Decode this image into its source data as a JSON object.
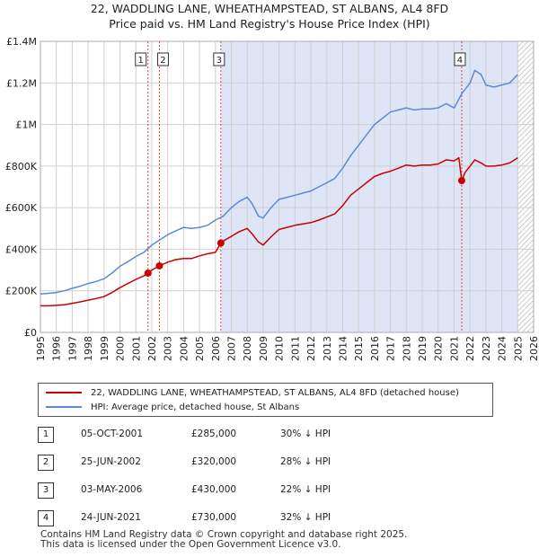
{
  "title_line1": "22, WADDLING LANE, WHEATHAMPSTEAD, ST ALBANS, AL4 8FD",
  "title_line2": "Price paid vs. HM Land Registry's House Price Index (HPI)",
  "colors": {
    "price_line": "#cc0000",
    "hpi_line": "#5b8bd0",
    "shade": "#dde5f7",
    "sale_marker": "#cc0000",
    "grid": "#cfcfcf",
    "vline": "#dd4444"
  },
  "legend": {
    "price_label": "22, WADDLING LANE, WHEATHAMPSTEAD, ST ALBANS, AL4 8FD (detached house)",
    "hpi_label": "HPI: Average price, detached house, St Albans"
  },
  "sales": [
    {
      "num": "1",
      "date": "05-OCT-2001",
      "price": "£285,000",
      "hpi": "30% ↓ HPI"
    },
    {
      "num": "2",
      "date": "25-JUN-2002",
      "price": "£320,000",
      "hpi": "28% ↓ HPI"
    },
    {
      "num": "3",
      "date": "03-MAY-2006",
      "price": "£430,000",
      "hpi": "22% ↓ HPI"
    },
    {
      "num": "4",
      "date": "24-JUN-2021",
      "price": "£730,000",
      "hpi": "32% ↓ HPI"
    }
  ],
  "footer": {
    "line1": "Contains HM Land Registry data © Crown copyright and database right 2025.",
    "line2": "This data is licensed under the Open Government Licence v3.0."
  },
  "chart_data": {
    "type": "line",
    "xlabel": "",
    "ylabel": "",
    "xlim": [
      1995,
      2026
    ],
    "ylim": [
      0,
      1400000
    ],
    "x_ticks": [
      "1995",
      "1996",
      "1997",
      "1998",
      "1999",
      "2000",
      "2001",
      "2002",
      "2003",
      "2004",
      "2005",
      "2006",
      "2007",
      "2008",
      "2009",
      "2010",
      "2011",
      "2012",
      "2013",
      "2014",
      "2015",
      "2016",
      "2017",
      "2018",
      "2019",
      "2020",
      "2021",
      "2022",
      "2023",
      "2024",
      "2025",
      "2026"
    ],
    "y_ticks": [
      {
        "value": 0,
        "label": "£0"
      },
      {
        "value": 200000,
        "label": "£200K"
      },
      {
        "value": 400000,
        "label": "£400K"
      },
      {
        "value": 600000,
        "label": "£600K"
      },
      {
        "value": 800000,
        "label": "£800K"
      },
      {
        "value": 1000000,
        "label": "£1M"
      },
      {
        "value": 1200000,
        "label": "£1.2M"
      },
      {
        "value": 1400000,
        "label": "£1.4M"
      }
    ],
    "shaded_region": [
      2006.34,
      2025.0
    ],
    "hatched_region": [
      2025.0,
      2026.0
    ],
    "series": [
      {
        "name": "HPI: Average price, detached house, St Albans",
        "x": [
          1995,
          1995.5,
          1996,
          1996.5,
          1997,
          1997.5,
          1998,
          1998.5,
          1999,
          1999.5,
          2000,
          2000.5,
          2001,
          2001.5,
          2002,
          2002.5,
          2003,
          2003.5,
          2004,
          2004.5,
          2005,
          2005.5,
          2006,
          2006.5,
          2007,
          2007.5,
          2008,
          2008.3,
          2008.7,
          2009,
          2009.5,
          2010,
          2010.5,
          2011,
          2011.5,
          2012,
          2012.5,
          2013,
          2013.5,
          2014,
          2014.5,
          2015,
          2015.5,
          2016,
          2016.5,
          2017,
          2017.5,
          2018,
          2018.5,
          2019,
          2019.5,
          2020,
          2020.5,
          2021,
          2021.5,
          2022,
          2022.3,
          2022.7,
          2023,
          2023.5,
          2024,
          2024.5,
          2025
        ],
        "values": [
          185000,
          188000,
          192000,
          200000,
          212000,
          222000,
          235000,
          245000,
          258000,
          285000,
          318000,
          340000,
          365000,
          385000,
          420000,
          445000,
          470000,
          488000,
          505000,
          500000,
          505000,
          515000,
          540000,
          560000,
          600000,
          630000,
          650000,
          620000,
          560000,
          550000,
          600000,
          640000,
          650000,
          660000,
          670000,
          680000,
          700000,
          720000,
          740000,
          790000,
          850000,
          900000,
          950000,
          1000000,
          1030000,
          1060000,
          1070000,
          1080000,
          1070000,
          1075000,
          1075000,
          1080000,
          1100000,
          1080000,
          1150000,
          1200000,
          1260000,
          1240000,
          1190000,
          1180000,
          1190000,
          1200000,
          1240000
        ]
      },
      {
        "name": "22, WADDLING LANE, WHEATHAMPSTEAD, ST ALBANS, AL4 8FD (detached house)",
        "x": [
          1995,
          1995.5,
          1996,
          1996.5,
          1997,
          1997.5,
          1998,
          1998.5,
          1999,
          1999.5,
          2000,
          2000.5,
          2001,
          2001.5,
          2001.76,
          2002,
          2002.48,
          2003,
          2003.5,
          2004,
          2004.5,
          2005,
          2005.5,
          2006,
          2006.34,
          2006.5,
          2007,
          2007.5,
          2008,
          2008.3,
          2008.7,
          2009,
          2009.5,
          2010,
          2010.5,
          2011,
          2011.5,
          2012,
          2012.5,
          2013,
          2013.5,
          2014,
          2014.5,
          2015,
          2015.5,
          2016,
          2016.5,
          2017,
          2017.5,
          2018,
          2018.5,
          2019,
          2019.5,
          2020,
          2020.5,
          2021,
          2021.3,
          2021.48,
          2021.7,
          2022,
          2022.3,
          2022.7,
          2023,
          2023.5,
          2024,
          2024.5,
          2025
        ],
        "values": [
          128000,
          128000,
          130000,
          133000,
          140000,
          147000,
          155000,
          163000,
          172000,
          192000,
          215000,
          235000,
          255000,
          272000,
          285000,
          300000,
          320000,
          338000,
          350000,
          355000,
          355000,
          368000,
          378000,
          385000,
          430000,
          440000,
          462000,
          485000,
          500000,
          475000,
          435000,
          420000,
          460000,
          495000,
          505000,
          515000,
          522000,
          528000,
          540000,
          555000,
          570000,
          610000,
          660000,
          690000,
          720000,
          750000,
          765000,
          775000,
          790000,
          805000,
          800000,
          805000,
          805000,
          810000,
          830000,
          825000,
          840000,
          730000,
          770000,
          800000,
          830000,
          815000,
          800000,
          800000,
          805000,
          815000,
          840000
        ]
      }
    ],
    "sale_points": [
      {
        "label": "1",
        "x": 2001.76,
        "value": 285000
      },
      {
        "label": "2",
        "x": 2002.48,
        "value": 320000
      },
      {
        "label": "3",
        "x": 2006.34,
        "value": 430000
      },
      {
        "label": "4",
        "x": 2021.48,
        "value": 730000
      }
    ]
  }
}
